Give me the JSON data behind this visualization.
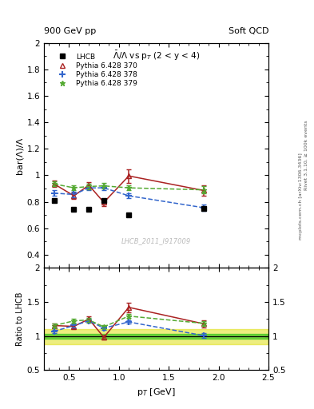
{
  "title_left": "900 GeV pp",
  "title_right": "Soft QCD",
  "plot_title": "$\\bar{\\Lambda}/\\Lambda$ vs p$_{T}$ (2 < y < 4)",
  "ylabel_main": "bar(\\u039b)/\\u039b",
  "ylabel_ratio": "Ratio to LHCB",
  "xlabel": "p$_{T}$ [GeV]",
  "watermark": "LHCB_2011_I917009",
  "right_label_1": "Rivet 3.1.10, ≥ 100k events",
  "right_label_2": "mcplots.cern.ch [arXiv:1306.3436]",
  "xlim": [
    0.25,
    2.5
  ],
  "ylim_main": [
    0.3,
    2.0
  ],
  "ylim_ratio": [
    0.5,
    2.0
  ],
  "yticks_main": [
    0.4,
    0.6,
    0.8,
    1.0,
    1.2,
    1.4,
    1.6,
    1.8,
    2.0
  ],
  "yticks_ratio": [
    0.5,
    1.0,
    1.5,
    2.0
  ],
  "lhcb_x": [
    0.35,
    0.55,
    0.7,
    0.85,
    1.1,
    1.85
  ],
  "lhcb_y": [
    0.81,
    0.74,
    0.74,
    0.81,
    0.7,
    0.75
  ],
  "pythia370_x": [
    0.35,
    0.55,
    0.7,
    0.85,
    1.1,
    1.85
  ],
  "pythia370_y": [
    0.935,
    0.845,
    0.925,
    0.795,
    0.995,
    0.885
  ],
  "pythia370_yerr": [
    0.025,
    0.025,
    0.025,
    0.025,
    0.05,
    0.04
  ],
  "pythia378_x": [
    0.35,
    0.55,
    0.7,
    0.85,
    1.1,
    1.85
  ],
  "pythia378_y": [
    0.865,
    0.855,
    0.905,
    0.905,
    0.845,
    0.755
  ],
  "pythia378_yerr": [
    0.02,
    0.02,
    0.02,
    0.02,
    0.02,
    0.025
  ],
  "pythia379_x": [
    0.35,
    0.55,
    0.7,
    0.85,
    1.1,
    1.85
  ],
  "pythia379_y": [
    0.935,
    0.905,
    0.915,
    0.92,
    0.905,
    0.89
  ],
  "pythia379_yerr": [
    0.02,
    0.02,
    0.02,
    0.02,
    0.02,
    0.025
  ],
  "color_370": "#aa2222",
  "color_378": "#3366cc",
  "color_379": "#55aa33",
  "color_lhcb": "#000000",
  "band_green_color": "#00bb00",
  "band_yellow_color": "#dddd00",
  "band_green_alpha": 0.5,
  "band_yellow_alpha": 0.5,
  "band_green_range": [
    0.965,
    1.035
  ],
  "band_yellow_range": [
    0.88,
    1.1
  ]
}
